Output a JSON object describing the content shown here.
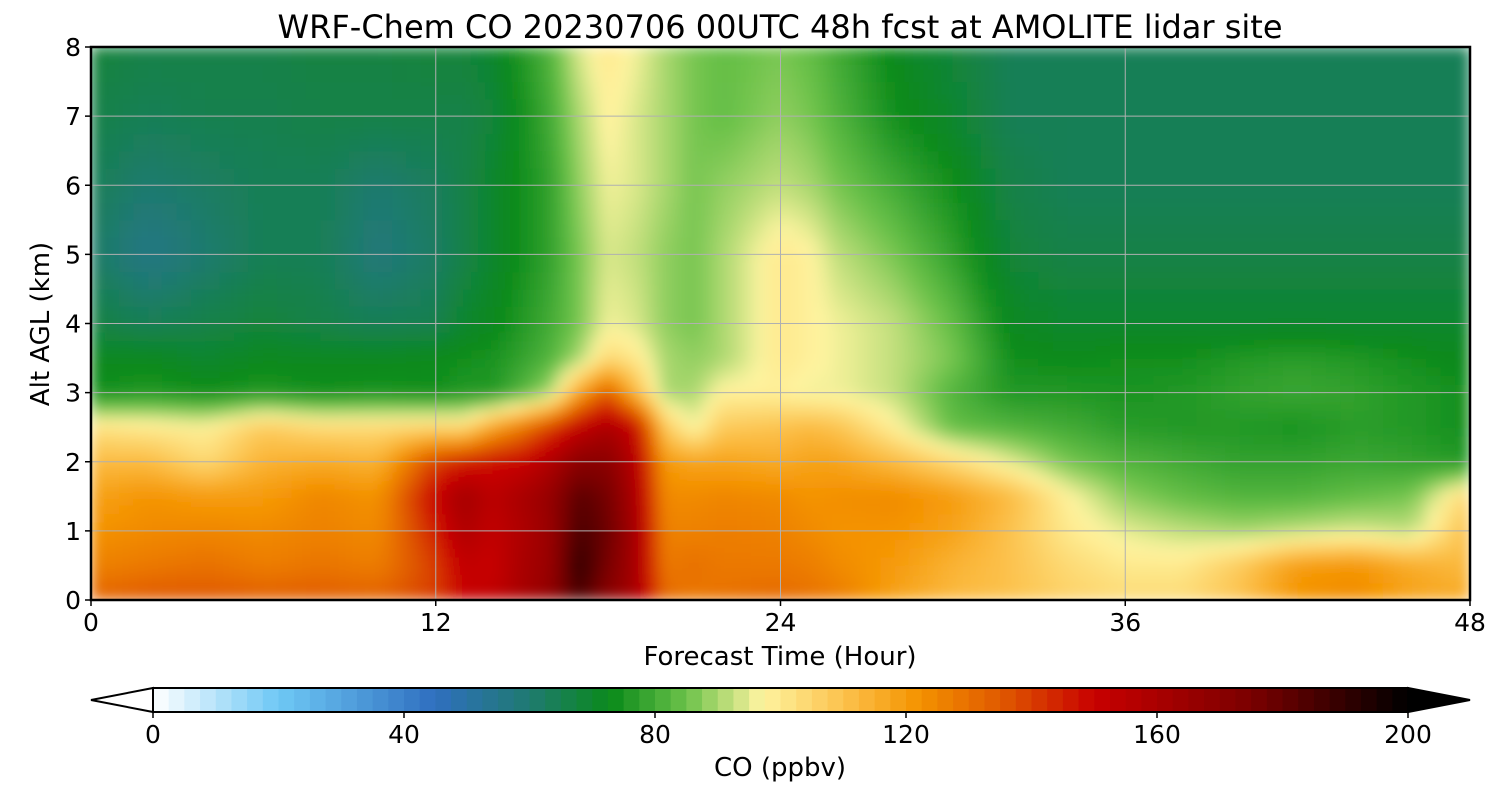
{
  "chart_data": {
    "type": "heatmap",
    "title": "WRF-Chem CO  20230706 00UTC 48h fcst at AMOLITE lidar site",
    "xlabel": "Forecast Time (Hour)",
    "ylabel": "Alt AGL (km)",
    "xlim": [
      0,
      48
    ],
    "ylim": [
      0,
      8
    ],
    "x_ticks": [
      0,
      12,
      24,
      36,
      48
    ],
    "y_ticks": [
      0,
      1,
      2,
      3,
      4,
      5,
      6,
      7,
      8
    ],
    "grid": true,
    "colorbar": {
      "label": "CO  (ppbv)",
      "min": 0,
      "max": 200,
      "ticks": [
        0,
        40,
        80,
        120,
        160,
        200
      ],
      "extend": "both",
      "orientation": "horizontal",
      "position": "bottom",
      "colormap_stops": [
        {
          "value": 0,
          "color": "#ffffff"
        },
        {
          "value": 20,
          "color": "#6ec8f5"
        },
        {
          "value": 45,
          "color": "#2f6fbf"
        },
        {
          "value": 60,
          "color": "#1f7a70"
        },
        {
          "value": 73,
          "color": "#0a8a1a"
        },
        {
          "value": 85,
          "color": "#6cc24a"
        },
        {
          "value": 97,
          "color": "#fef4a0"
        },
        {
          "value": 110,
          "color": "#fcc24d"
        },
        {
          "value": 122,
          "color": "#f49300"
        },
        {
          "value": 135,
          "color": "#e05a00"
        },
        {
          "value": 150,
          "color": "#c80000"
        },
        {
          "value": 175,
          "color": "#7a0000"
        },
        {
          "value": 200,
          "color": "#000000"
        }
      ]
    },
    "x": [
      0,
      2,
      4,
      6,
      8,
      10,
      12,
      13,
      14,
      15,
      16,
      17,
      18,
      19,
      20,
      21,
      22,
      24,
      25,
      26,
      28,
      30,
      32,
      34,
      36,
      38,
      40,
      42,
      44,
      46,
      48
    ],
    "y": [
      0,
      0.5,
      1,
      1.5,
      2,
      2.5,
      3,
      3.5,
      4,
      5,
      6,
      7,
      8
    ],
    "z": [
      [
        133,
        136,
        136,
        135,
        135,
        134,
        140,
        150,
        153,
        160,
        168,
        185,
        170,
        160,
        132,
        128,
        130,
        132,
        130,
        128,
        118,
        112,
        110,
        106,
        104,
        104,
        110,
        122,
        124,
        118,
        116
      ],
      [
        126,
        128,
        130,
        127,
        129,
        127,
        140,
        152,
        150,
        160,
        165,
        190,
        175,
        160,
        128,
        130,
        128,
        128,
        127,
        124,
        120,
        114,
        110,
        104,
        100,
        100,
        108,
        120,
        122,
        116,
        112
      ],
      [
        122,
        124,
        125,
        124,
        126,
        124,
        145,
        158,
        152,
        158,
        165,
        185,
        178,
        160,
        126,
        126,
        127,
        126,
        124,
        122,
        122,
        118,
        110,
        100,
        95,
        92,
        90,
        92,
        94,
        92,
        112
      ],
      [
        118,
        122,
        120,
        120,
        125,
        122,
        150,
        162,
        154,
        160,
        166,
        182,
        176,
        158,
        124,
        124,
        125,
        124,
        122,
        123,
        124,
        120,
        112,
        98,
        88,
        84,
        82,
        82,
        84,
        86,
        106
      ],
      [
        112,
        112,
        104,
        114,
        116,
        114,
        140,
        145,
        148,
        150,
        158,
        170,
        170,
        155,
        120,
        118,
        118,
        116,
        118,
        118,
        112,
        104,
        95,
        86,
        82,
        80,
        78,
        78,
        79,
        78,
        76
      ],
      [
        102,
        100,
        98,
        108,
        104,
        104,
        105,
        104,
        118,
        128,
        140,
        152,
        160,
        150,
        108,
        96,
        108,
        110,
        112,
        110,
        98,
        84,
        82,
        80,
        77,
        76,
        76,
        75,
        77,
        76,
        74
      ],
      [
        74,
        76,
        74,
        76,
        74,
        75,
        74,
        76,
        76,
        82,
        90,
        118,
        135,
        112,
        90,
        90,
        98,
        98,
        96,
        96,
        92,
        82,
        76,
        76,
        75,
        76,
        78,
        79,
        78,
        76,
        74
      ],
      [
        72,
        72,
        70,
        72,
        72,
        72,
        73,
        74,
        75,
        78,
        82,
        90,
        104,
        100,
        90,
        88,
        90,
        100,
        98,
        96,
        92,
        86,
        74,
        73,
        74,
        74,
        76,
        77,
        76,
        74,
        72
      ],
      [
        67,
        64,
        66,
        68,
        66,
        64,
        65,
        70,
        72,
        76,
        80,
        86,
        96,
        94,
        88,
        86,
        90,
        100,
        98,
        96,
        92,
        84,
        72,
        70,
        70,
        70,
        70,
        70,
        70,
        70,
        70
      ],
      [
        62,
        56,
        60,
        64,
        64,
        58,
        62,
        66,
        70,
        74,
        78,
        86,
        94,
        92,
        88,
        86,
        90,
        100,
        98,
        92,
        86,
        78,
        68,
        66,
        66,
        66,
        66,
        66,
        66,
        66,
        66
      ],
      [
        64,
        60,
        62,
        64,
        64,
        60,
        63,
        66,
        70,
        74,
        78,
        88,
        96,
        94,
        90,
        86,
        88,
        92,
        90,
        86,
        80,
        74,
        66,
        64,
        64,
        64,
        64,
        64,
        64,
        64,
        64
      ],
      [
        66,
        64,
        65,
        65,
        66,
        66,
        66,
        66,
        68,
        74,
        80,
        90,
        98,
        94,
        90,
        86,
        84,
        88,
        86,
        82,
        74,
        70,
        64,
        64,
        64,
        64,
        64,
        64,
        64,
        64,
        64
      ],
      [
        68,
        66,
        66,
        66,
        67,
        67,
        68,
        68,
        70,
        76,
        82,
        94,
        100,
        96,
        90,
        86,
        84,
        86,
        84,
        80,
        72,
        68,
        64,
        64,
        64,
        64,
        64,
        64,
        64,
        64,
        64
      ]
    ]
  }
}
